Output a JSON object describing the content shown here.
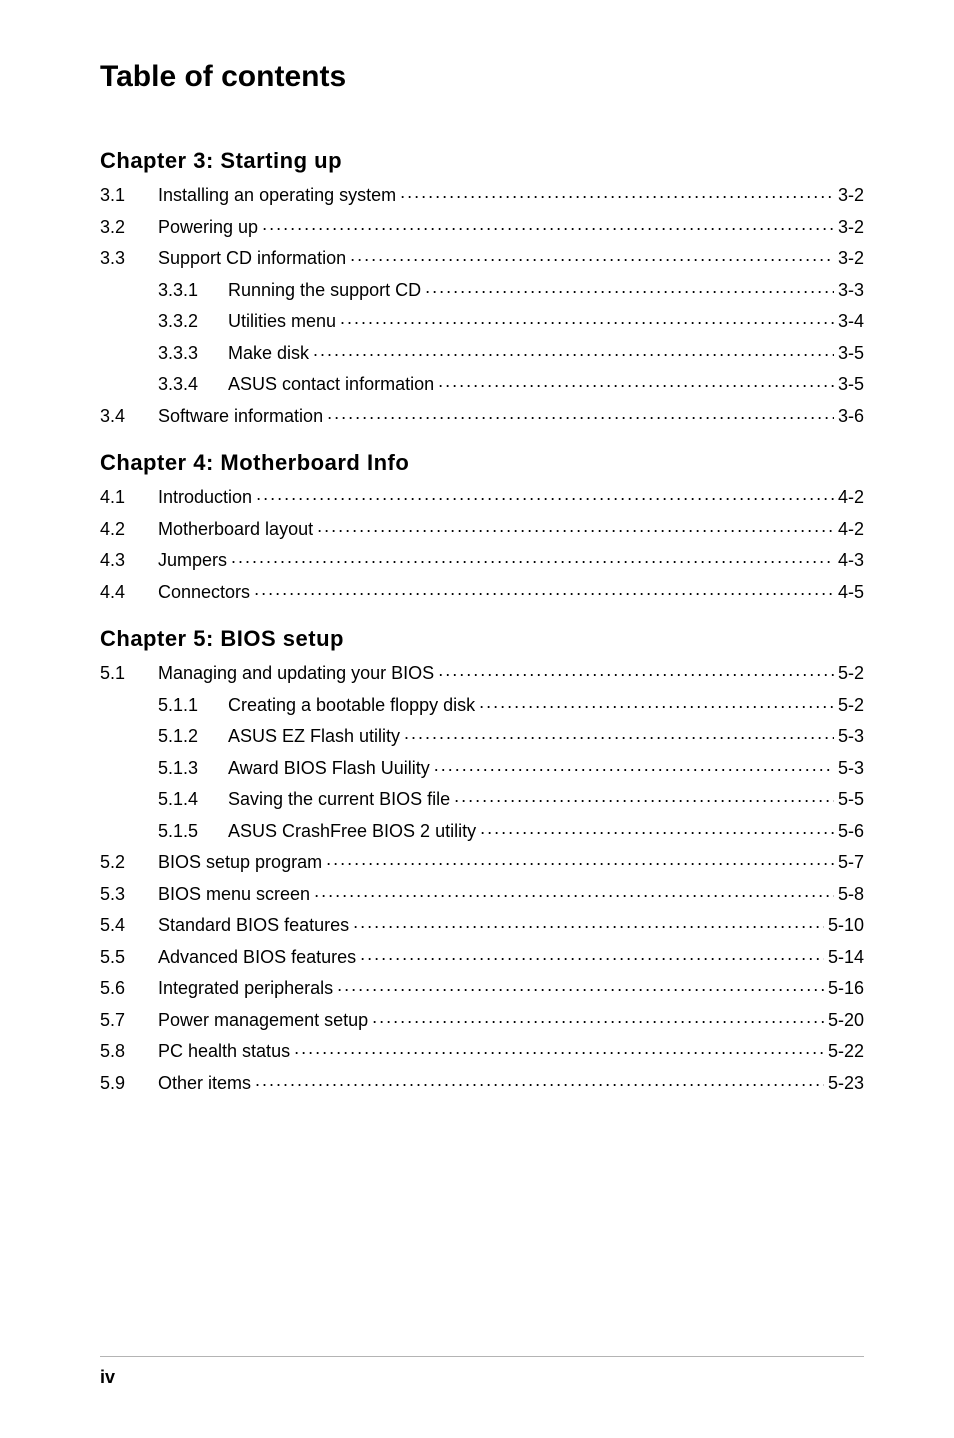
{
  "title": "Table of contents",
  "chapters": [
    {
      "heading": "Chapter 3: Starting up",
      "rows": [
        {
          "num": "3.1",
          "title": "Installing an operating system",
          "page": "3-2"
        },
        {
          "num": "3.2",
          "title": "Powering up",
          "page": "3-2"
        },
        {
          "num": "3.3",
          "title": "Support CD information",
          "page": "3-2"
        },
        {
          "sub": true,
          "num": "3.3.1",
          "title": "Running the support CD",
          "page": "3-3"
        },
        {
          "sub": true,
          "num": "3.3.2",
          "title": "Utilities menu",
          "page": "3-4"
        },
        {
          "sub": true,
          "num": "3.3.3",
          "title": "Make disk",
          "page": "3-5"
        },
        {
          "sub": true,
          "num": "3.3.4",
          "title": "ASUS contact information",
          "page": "3-5"
        },
        {
          "num": "3.4",
          "title": "Software information",
          "page": "3-6"
        }
      ]
    },
    {
      "heading": "Chapter 4: Motherboard Info",
      "rows": [
        {
          "num": "4.1",
          "title": "Introduction",
          "page": "4-2"
        },
        {
          "num": "4.2",
          "title": "Motherboard layout",
          "page": "4-2"
        },
        {
          "num": "4.3",
          "title": "Jumpers",
          "page": "4-3"
        },
        {
          "num": "4.4",
          "title": "Connectors",
          "page": "4-5"
        }
      ]
    },
    {
      "heading": "Chapter 5: BIOS setup",
      "rows": [
        {
          "num": "5.1",
          "title": "Managing and updating your BIOS",
          "page": "5-2"
        },
        {
          "sub": true,
          "num": "5.1.1",
          "title": "Creating a bootable floppy disk",
          "page": "5-2"
        },
        {
          "sub": true,
          "num": "5.1.2",
          "title": "ASUS EZ Flash utility",
          "page": "5-3"
        },
        {
          "sub": true,
          "num": "5.1.3",
          "title": "Award BIOS Flash Uuility",
          "page": "5-3"
        },
        {
          "sub": true,
          "num": "5.1.4",
          "title": "Saving the current BIOS file",
          "page": "5-5"
        },
        {
          "sub": true,
          "num": "5.1.5",
          "title": "ASUS CrashFree BIOS 2 utility",
          "page": "5-6"
        },
        {
          "num": "5.2",
          "title": "BIOS setup program",
          "page": "5-7"
        },
        {
          "num": "5.3",
          "title": "BIOS menu screen",
          "page": "5-8"
        },
        {
          "num": "5.4",
          "title": "Standard BIOS features",
          "page": "5-10"
        },
        {
          "num": "5.5",
          "title": "Advanced BIOS features",
          "page": "5-14"
        },
        {
          "num": "5.6",
          "title": "Integrated peripherals",
          "page": "5-16"
        },
        {
          "num": "5.7",
          "title": "Power management setup",
          "page": "5-20"
        },
        {
          "num": "5.8",
          "title": "PC health status",
          "page": "5-22"
        },
        {
          "num": "5.9",
          "title": "Other items",
          "page": "5-23"
        }
      ]
    }
  ],
  "footer_page": "iv"
}
